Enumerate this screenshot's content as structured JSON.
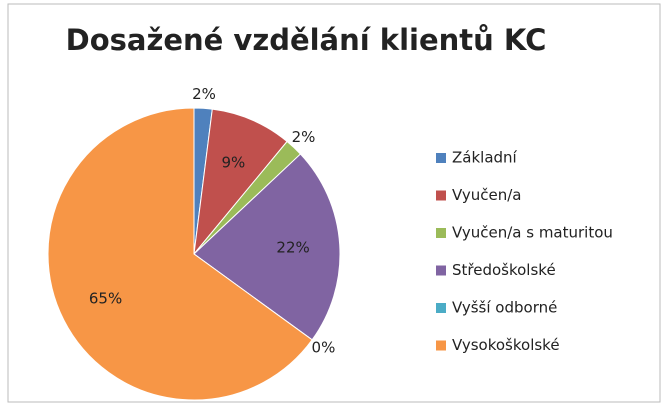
{
  "chart_data": {
    "type": "pie",
    "title": "Dosažené vzdělání klientů KC",
    "categories": [
      "Základní",
      "Vyučen/a",
      "Vyučen/a s maturitou",
      "Středoškolské",
      "Vyšší odborné",
      "Vysokoškolské"
    ],
    "values": [
      2,
      9,
      2,
      22,
      0,
      65
    ],
    "value_labels": [
      "2%",
      "9%",
      "2%",
      "22%",
      "0%",
      "65%"
    ],
    "colors": [
      "#4f81bd",
      "#c0504d",
      "#9bbb59",
      "#8064a2",
      "#4bacc6",
      "#f79646"
    ],
    "legend": "right"
  }
}
